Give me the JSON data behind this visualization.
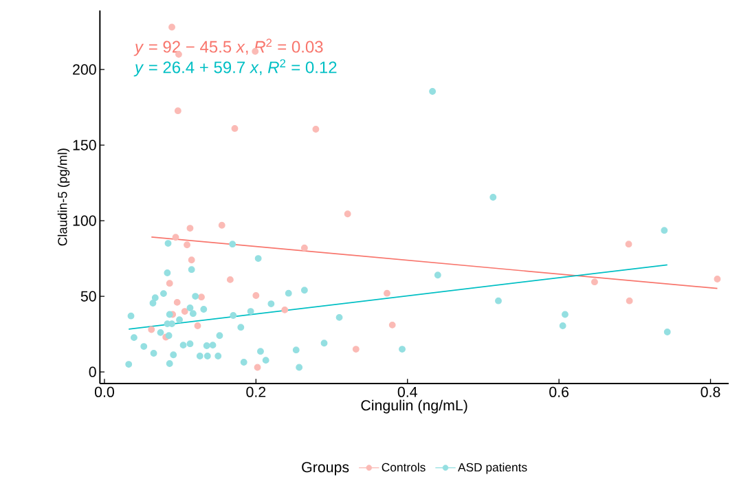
{
  "chart_data": {
    "type": "scatter",
    "xlabel": "Cingulin (ng/mL)",
    "ylabel": "Claudin-5 (pg/ml)",
    "legend_title": "Groups",
    "annotations": [
      "*y* = 92 − 45.5 *x*, *R*$^{2}$ = 0.03",
      "*y* = 26.4 + 59.7 *x*, *R*$^{2}$ = 0.12"
    ],
    "xlim": [
      -0.006,
      0.824
    ],
    "ylim": [
      -7.7,
      239
    ],
    "xticks": [
      {
        "value": 0,
        "label": "0.0"
      },
      {
        "value": 0.2,
        "label": "0.2"
      },
      {
        "value": 0.4,
        "label": "0.4"
      },
      {
        "value": 0.6,
        "label": "0.6"
      },
      {
        "value": 0.8,
        "label": "0.8"
      }
    ],
    "yticks": [
      0,
      50,
      100,
      150,
      200
    ],
    "grid": false,
    "legend": "bottom",
    "series": [
      {
        "name": "Controls",
        "color": "#fbbab5",
        "marker": "circle",
        "x": [
          0.089,
          0.098,
          0.199,
          0.097,
          0.172,
          0.279,
          0.321,
          0.264,
          0.692,
          0.647,
          0.809,
          0.693,
          0.373,
          0.38,
          0.332,
          0.113,
          0.155,
          0.094,
          0.109,
          0.115,
          0.086,
          0.166,
          0.128,
          0.2,
          0.096,
          0.09,
          0.106,
          0.238,
          0.123,
          0.062,
          0.081,
          0.202
        ],
        "values": [
          228,
          210,
          212,
          172.7,
          161,
          160.5,
          104.5,
          82,
          84.5,
          59.5,
          61.4,
          47,
          52,
          31,
          15,
          95,
          97,
          89,
          84,
          74,
          58.6,
          61,
          49.5,
          50.5,
          46,
          38,
          40,
          41,
          30.5,
          28,
          23,
          3
        ]
      },
      {
        "name": "ASD patients",
        "color": "#94dfe1",
        "marker": "circle",
        "x": [
          0.433,
          0.513,
          0.739,
          0.44,
          0.52,
          0.608,
          0.605,
          0.743,
          0.31,
          0.29,
          0.393,
          0.084,
          0.169,
          0.203,
          0.115,
          0.083,
          0.078,
          0.067,
          0.064,
          0.12,
          0.243,
          0.264,
          0.22,
          0.035,
          0.113,
          0.117,
          0.131,
          0.086,
          0.099,
          0.17,
          0.193,
          0.18,
          0.083,
          0.089,
          0.039,
          0.074,
          0.085,
          0.152,
          0.052,
          0.104,
          0.113,
          0.135,
          0.143,
          0.065,
          0.091,
          0.126,
          0.136,
          0.15,
          0.206,
          0.253,
          0.213,
          0.184,
          0.032,
          0.086,
          0.257
        ],
        "values": [
          185.5,
          115.5,
          93.6,
          64,
          47,
          38,
          30.5,
          26.4,
          36,
          19,
          15,
          85,
          84.5,
          75,
          67.7,
          65.5,
          51.8,
          49,
          45.5,
          50,
          52,
          54,
          45,
          37,
          42.3,
          38.6,
          41.4,
          38,
          34.5,
          37.3,
          40,
          29.5,
          31.8,
          31.8,
          22.7,
          26,
          24,
          24,
          16.8,
          17.7,
          18.6,
          17.3,
          17.7,
          12.3,
          11.3,
          10.5,
          10.5,
          10.5,
          13.6,
          14.5,
          7.7,
          6.4,
          5,
          5.5,
          3
        ]
      },
      {
        "type": "line",
        "color": "#f8766d",
        "marker": "none",
        "x": [
          0.062,
          0.809
        ],
        "values": [
          89.2,
          55.2
        ]
      },
      {
        "type": "line",
        "color": "#00bfc4",
        "marker": "none",
        "x": [
          0.032,
          0.743
        ],
        "values": [
          28.3,
          70.8
        ]
      }
    ]
  }
}
